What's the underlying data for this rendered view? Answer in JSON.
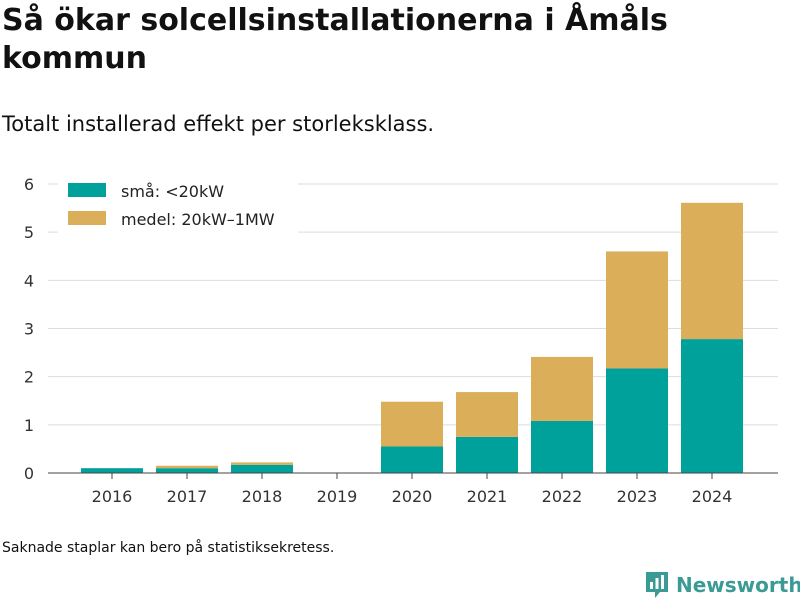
{
  "title": "Så ökar solcellsinstallationerna i Åmåls kommun",
  "subtitle": "Totalt installerad effekt per storleksklass.",
  "footnote": "Saknade staplar kan bero på statistiksekretess.",
  "brand": {
    "name": "Newsworthy",
    "color": "#3a9b95"
  },
  "chart_data": {
    "type": "bar",
    "stacked": true,
    "categories": [
      "2016",
      "2017",
      "2018",
      "2019",
      "2020",
      "2021",
      "2022",
      "2023",
      "2024"
    ],
    "series": [
      {
        "name": "små: <20kW",
        "color": "#00a19a",
        "values": [
          0.1,
          0.1,
          0.17,
          0,
          0.55,
          0.75,
          1.08,
          2.17,
          2.78
        ]
      },
      {
        "name": "medel: 20kW–1MW",
        "color": "#dbae5a",
        "values": [
          0,
          0.05,
          0.05,
          0,
          0.93,
          0.93,
          1.33,
          2.43,
          2.83
        ]
      }
    ],
    "ylim": [
      0,
      6
    ],
    "yticks": [
      "0",
      "1",
      "2",
      "3",
      "4",
      "5",
      "6"
    ],
    "grid": true,
    "legend_position": "top-left"
  }
}
